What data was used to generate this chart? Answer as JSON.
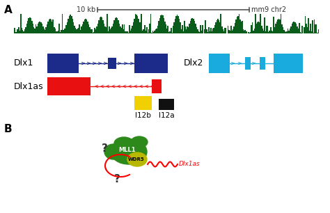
{
  "fig_width": 4.74,
  "fig_height": 3.06,
  "dpi": 100,
  "bg_color": "#ffffff",
  "label_A": "A",
  "label_B": "B",
  "scale_bar_text": "10 kb",
  "chr_text": "mm9 chr2",
  "dlx1_label": "Dlx1",
  "dlx2_label": "Dlx2",
  "dlx1as_label": "Dlx1as",
  "i12b_label": "I12b",
  "i12a_label": "I12a",
  "mll1_label": "MLL1",
  "wdr5_label": "WDR5",
  "dlx1as_italic": "Dlx1as",
  "dlx1_color": "#1c2a8a",
  "dlx2_color": "#1aabde",
  "dlx1as_color": "#e81010",
  "i12b_color": "#f0d000",
  "i12a_color": "#111111",
  "track_color": "#0a5c1a",
  "green_blob_color": "#2d8a1a",
  "yellow_blob_color": "#b8b800",
  "arrow_color": "#444444"
}
